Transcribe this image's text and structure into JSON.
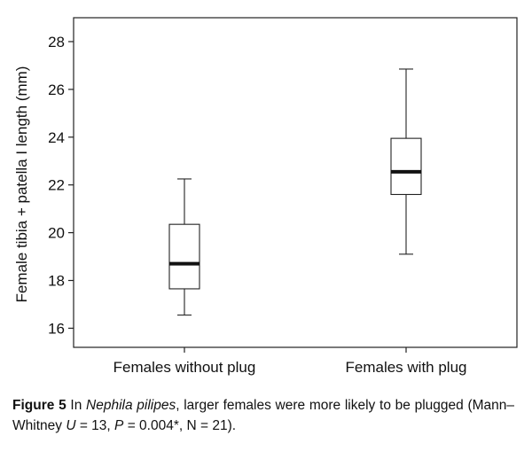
{
  "chart_data": {
    "type": "box",
    "ylabel": "Female tibia + patella I length (mm)",
    "xlabel": "",
    "ylim": [
      15.2,
      29
    ],
    "yticks": [
      16,
      18,
      20,
      22,
      24,
      26,
      28
    ],
    "grid": false,
    "categories": [
      "Females without plug",
      "Females with plug"
    ],
    "boxes": [
      {
        "category": "Females without plug",
        "min": 16.55,
        "q1": 17.65,
        "median": 18.7,
        "q3": 20.35,
        "max": 22.25
      },
      {
        "category": "Females with plug",
        "min": 19.1,
        "q1": 21.6,
        "median": 22.55,
        "q3": 23.95,
        "max": 26.85
      }
    ]
  },
  "caption": {
    "label": "Figure 5",
    "t1": " In ",
    "species": "Nephila pilipes",
    "t2": ", larger females were more likely to be plugged (Mann–Whitney ",
    "u_sym": "U",
    "t3": " = 13, ",
    "p_sym": "P",
    "t4": " = 0.004*, N = 21)."
  }
}
